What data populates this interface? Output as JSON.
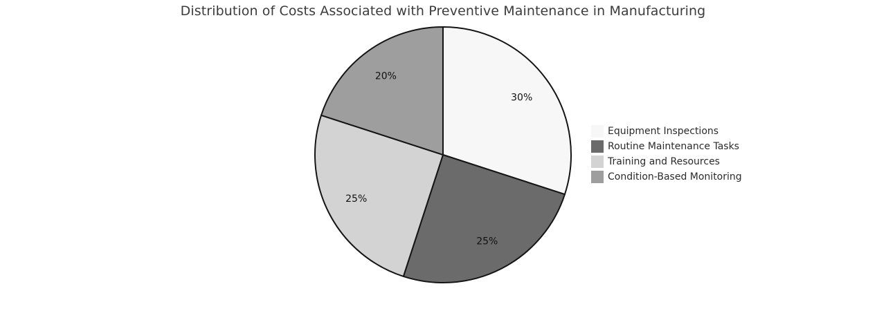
{
  "chart_data": {
    "type": "pie",
    "title": "Distribution of Costs Associated with Preventive Maintenance in Manufacturing",
    "direction": "clockwise",
    "start_angle_deg": 0,
    "stroke_color": "#141414",
    "stroke_width": 2,
    "label_color": "#111111",
    "legend_position": "right",
    "slices": [
      {
        "label": "Equipment Inspections",
        "value": 30,
        "display": "30%",
        "color": "#f7f7f7"
      },
      {
        "label": "Routine Maintenance Tasks",
        "value": 25,
        "display": "25%",
        "color": "#6b6b6b"
      },
      {
        "label": "Training and Resources",
        "value": 25,
        "display": "25%",
        "color": "#d3d3d3"
      },
      {
        "label": "Condition-Based Monitoring",
        "value": 20,
        "display": "20%",
        "color": "#9e9e9e"
      }
    ]
  }
}
